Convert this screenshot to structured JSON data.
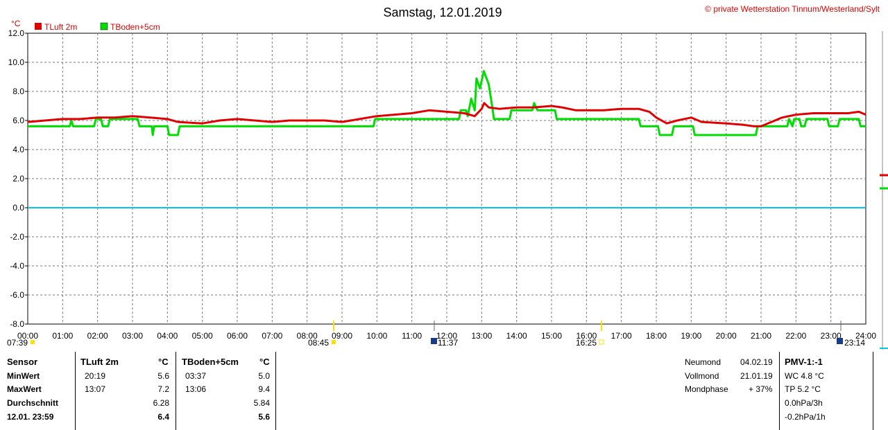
{
  "chart_data": {
    "type": "line",
    "title": "Samstag, 12.01.2019",
    "copyright": "© private Wetterstation Tinnum/Westerland/Sylt",
    "ylabel": "°C",
    "ylim": [
      -8,
      12
    ],
    "yticks": [
      "12.0",
      "10.0",
      "8.0",
      "6.0",
      "4.0",
      "2.0",
      "0.0",
      "-2.0",
      "-4.0",
      "-6.0",
      "-8.0"
    ],
    "xticks": [
      "00:00",
      "01:00",
      "02:00",
      "03:00",
      "04:00",
      "05:00",
      "06:00",
      "07:00",
      "08:00",
      "09:00",
      "10:00",
      "11:00",
      "12:00",
      "13:00",
      "14:00",
      "15:00",
      "16:00",
      "17:00",
      "18:00",
      "19:00",
      "20:00",
      "21:00",
      "22:00",
      "23:00",
      "24:00"
    ],
    "grid": true,
    "legend_position": "top-left",
    "zero_line_color": "#00c8e6",
    "series": [
      {
        "name": "TLuft 2m",
        "color": "#e00000",
        "points": [
          [
            0,
            5.9
          ],
          [
            0.5,
            6.0
          ],
          [
            1,
            6.1
          ],
          [
            1.5,
            6.1
          ],
          [
            2,
            6.2
          ],
          [
            2.5,
            6.2
          ],
          [
            3,
            6.3
          ],
          [
            3.5,
            6.2
          ],
          [
            4,
            6.1
          ],
          [
            4.3,
            5.9
          ],
          [
            5,
            5.8
          ],
          [
            5.5,
            6.0
          ],
          [
            6,
            6.1
          ],
          [
            6.5,
            6.0
          ],
          [
            7,
            5.9
          ],
          [
            7.5,
            6.0
          ],
          [
            8,
            6.0
          ],
          [
            8.5,
            6.0
          ],
          [
            9,
            5.9
          ],
          [
            9.5,
            6.1
          ],
          [
            10,
            6.3
          ],
          [
            10.5,
            6.4
          ],
          [
            11,
            6.5
          ],
          [
            11.5,
            6.7
          ],
          [
            12,
            6.6
          ],
          [
            12.5,
            6.5
          ],
          [
            12.8,
            6.3
          ],
          [
            13,
            6.8
          ],
          [
            13.07,
            7.2
          ],
          [
            13.2,
            6.9
          ],
          [
            13.5,
            6.8
          ],
          [
            14,
            6.9
          ],
          [
            14.5,
            6.9
          ],
          [
            15,
            7.0
          ],
          [
            15.3,
            6.9
          ],
          [
            15.7,
            6.7
          ],
          [
            16,
            6.7
          ],
          [
            16.5,
            6.7
          ],
          [
            17,
            6.8
          ],
          [
            17.5,
            6.8
          ],
          [
            17.8,
            6.6
          ],
          [
            18,
            6.2
          ],
          [
            18.3,
            5.8
          ],
          [
            18.6,
            6.0
          ],
          [
            19,
            6.2
          ],
          [
            19.3,
            5.9
          ],
          [
            20,
            5.8
          ],
          [
            20.5,
            5.7
          ],
          [
            20.8,
            5.6
          ],
          [
            21,
            5.6
          ],
          [
            21.3,
            5.9
          ],
          [
            21.6,
            6.2
          ],
          [
            22,
            6.4
          ],
          [
            22.5,
            6.5
          ],
          [
            23,
            6.5
          ],
          [
            23.5,
            6.5
          ],
          [
            23.8,
            6.6
          ],
          [
            24,
            6.4
          ]
        ]
      },
      {
        "name": "TBoden+5cm",
        "color": "#00dd00",
        "points": [
          [
            0,
            5.6
          ],
          [
            1.2,
            5.6
          ],
          [
            1.25,
            6.0
          ],
          [
            1.3,
            5.6
          ],
          [
            1.9,
            5.6
          ],
          [
            1.95,
            6.1
          ],
          [
            2.1,
            6.1
          ],
          [
            2.15,
            5.6
          ],
          [
            2.3,
            5.6
          ],
          [
            2.35,
            6.1
          ],
          [
            3.15,
            6.1
          ],
          [
            3.2,
            5.6
          ],
          [
            3.55,
            5.6
          ],
          [
            3.58,
            5.0
          ],
          [
            3.62,
            5.6
          ],
          [
            4,
            5.6
          ],
          [
            4.05,
            5.0
          ],
          [
            4.3,
            5.0
          ],
          [
            4.35,
            5.6
          ],
          [
            9.9,
            5.6
          ],
          [
            9.95,
            6.1
          ],
          [
            12.35,
            6.1
          ],
          [
            12.4,
            6.7
          ],
          [
            12.55,
            6.7
          ],
          [
            12.6,
            6.3
          ],
          [
            12.7,
            7.5
          ],
          [
            12.8,
            6.7
          ],
          [
            12.85,
            8.9
          ],
          [
            12.95,
            8.2
          ],
          [
            13.06,
            9.4
          ],
          [
            13.2,
            8.5
          ],
          [
            13.3,
            7.0
          ],
          [
            13.35,
            6.1
          ],
          [
            13.8,
            6.1
          ],
          [
            13.85,
            6.7
          ],
          [
            14.45,
            6.7
          ],
          [
            14.5,
            7.2
          ],
          [
            14.6,
            6.7
          ],
          [
            15.1,
            6.7
          ],
          [
            15.15,
            6.1
          ],
          [
            17.5,
            6.1
          ],
          [
            17.55,
            5.6
          ],
          [
            18.05,
            5.6
          ],
          [
            18.1,
            5.0
          ],
          [
            18.45,
            5.0
          ],
          [
            18.5,
            5.6
          ],
          [
            19.05,
            5.6
          ],
          [
            19.1,
            5.0
          ],
          [
            20.85,
            5.0
          ],
          [
            20.9,
            5.6
          ],
          [
            21.75,
            5.6
          ],
          [
            21.8,
            6.1
          ],
          [
            21.9,
            5.6
          ],
          [
            21.95,
            6.1
          ],
          [
            22.1,
            6.1
          ],
          [
            22.15,
            5.6
          ],
          [
            22.25,
            5.6
          ],
          [
            22.3,
            6.1
          ],
          [
            22.9,
            6.1
          ],
          [
            22.95,
            5.6
          ],
          [
            23.2,
            5.6
          ],
          [
            23.25,
            6.1
          ],
          [
            23.8,
            6.1
          ],
          [
            23.85,
            5.6
          ],
          [
            24,
            5.6
          ]
        ]
      }
    ],
    "sun_moon_times": [
      "07:39",
      "08:45",
      "11:37",
      "16:25",
      "23:14"
    ]
  },
  "table": {
    "headers": {
      "sensor": "Sensor",
      "col1": "TLuft 2m",
      "unit1": "°C",
      "col2": "TBoden+5cm",
      "unit2": "°C"
    },
    "rows": [
      {
        "label": "MinWert",
        "t1": "20:19",
        "v1": "5.6",
        "t2": "03:37",
        "v2": "5.0"
      },
      {
        "label": "MaxWert",
        "t1": "13:07",
        "v1": "7.2",
        "t2": "13:06",
        "v2": "9.4"
      },
      {
        "label": "Durchschnitt",
        "t1": "",
        "v1": "6.28",
        "t2": "",
        "v2": "5.84"
      },
      {
        "label": "12.01. 23:59",
        "t1": "",
        "v1": "6.4",
        "t2": "",
        "v2": "5.6"
      }
    ]
  },
  "moon": [
    {
      "label": "Neumond",
      "value": "04.02.19"
    },
    {
      "label": "Vollmond",
      "value": "21.01.19"
    },
    {
      "label": "Mondphase",
      "value": "+ 37%"
    }
  ],
  "pmv": {
    "title": "PMV-1:-1",
    "lines": [
      "WC 4.8 °C",
      "TP 5.2 °C",
      "0.0hPa/3h",
      "-0.2hPa/1h"
    ]
  }
}
